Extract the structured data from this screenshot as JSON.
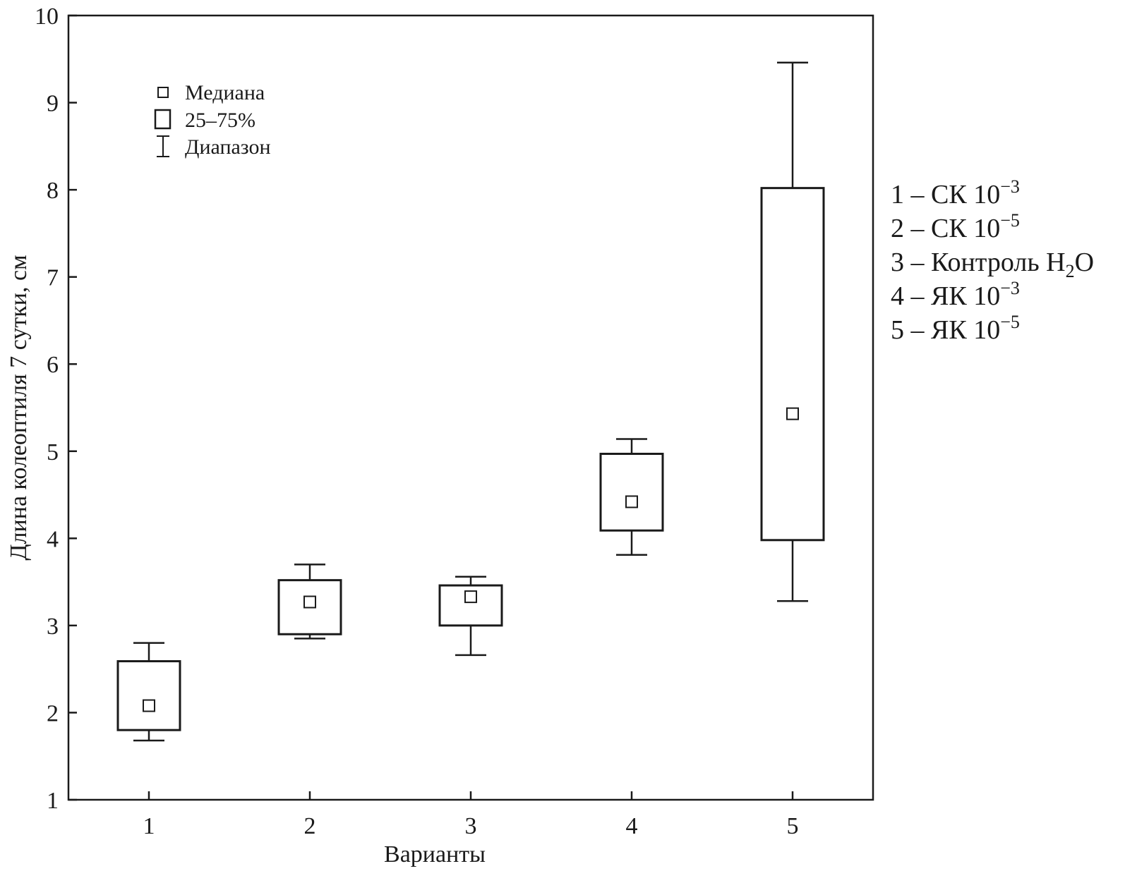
{
  "chart_data": {
    "type": "boxplot",
    "xlabel": "Варианты",
    "ylabel": "Длина колеоптиля 7 сутки, см",
    "ylim": [
      1,
      10
    ],
    "xlim": [
      0.5,
      5.5
    ],
    "yticks": [
      "1",
      "2",
      "3",
      "4",
      "5",
      "6",
      "7",
      "8",
      "9",
      "10"
    ],
    "xticks": [
      "1",
      "2",
      "3",
      "4",
      "5"
    ],
    "grid": false,
    "legend": {
      "position": "top-left",
      "items": [
        {
          "symbol": "median-square",
          "label": "Медиана"
        },
        {
          "symbol": "box",
          "label": "25–75%"
        },
        {
          "symbol": "whisker",
          "label": "Диапазон"
        }
      ]
    },
    "variant_key": {
      "position": "right",
      "items": [
        {
          "prefix": "1 – СК 10",
          "sup": "−3",
          "suffix": ""
        },
        {
          "prefix": "2 – СК 10",
          "sup": "−5",
          "suffix": ""
        },
        {
          "prefix": "3 –  Контроль H",
          "sub": "2",
          "suffix": "O"
        },
        {
          "prefix": "4 – ЯК 10",
          "sup": "−3",
          "suffix": ""
        },
        {
          "prefix": "5 – ЯК 10",
          "sup": "−5",
          "suffix": ""
        }
      ]
    },
    "series": [
      {
        "x": 1,
        "min": 1.68,
        "q1": 1.8,
        "median": 2.08,
        "q3": 2.59,
        "max": 2.8
      },
      {
        "x": 2,
        "min": 2.85,
        "q1": 2.9,
        "median": 3.27,
        "q3": 3.52,
        "max": 3.7
      },
      {
        "x": 3,
        "min": 2.66,
        "q1": 3.0,
        "median": 3.33,
        "q3": 3.46,
        "max": 3.56
      },
      {
        "x": 4,
        "min": 3.81,
        "q1": 4.09,
        "median": 4.42,
        "q3": 4.97,
        "max": 5.14
      },
      {
        "x": 5,
        "min": 3.28,
        "q1": 3.98,
        "median": 5.43,
        "q3": 8.02,
        "max": 9.46
      }
    ]
  }
}
